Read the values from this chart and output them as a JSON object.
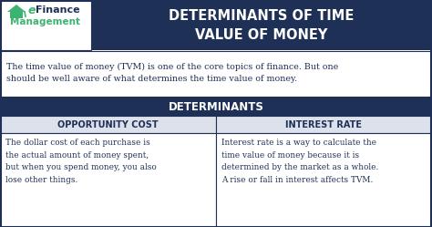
{
  "title": "DETERMINANTS OF TIME\nVALUE OF MONEY",
  "title_bg": "#1e3056",
  "title_color": "#ffffff",
  "logo_text1": "Finance",
  "logo_text2": "Management",
  "logo_bg": "#ffffff",
  "logo_accent": "#3cb371",
  "logo_dark": "#1e3056",
  "intro_text": "The time value of money (TVM) is one of the core topics of finance. But one\nshould be well aware of what determines the time value of money.",
  "intro_bg": "#ffffff",
  "intro_color": "#1e3056",
  "determinants_label": "DETERMINANTS",
  "determinants_bg": "#1e3056",
  "determinants_color": "#ffffff",
  "col1_header": "OPPORTUNITY COST",
  "col2_header": "INTEREST RATE",
  "col_header_bg": "#dde1ec",
  "col_header_color": "#1e3056",
  "col1_text": "The dollar cost of each purchase is\nthe actual amount of money spent,\nbut when you spend money, you also\nlose other things.",
  "col2_text": "Interest rate is a way to calculate the\ntime value of money because it is\ndetermined by the market as a whole.\nA rise or fall in interest affects TVM.",
  "col_text_color": "#1e3056",
  "col_text_bg": "#ffffff",
  "border_color": "#1e3056",
  "fig_bg": "#ffffff",
  "figw": 4.74,
  "figh": 2.49,
  "dpi": 100
}
